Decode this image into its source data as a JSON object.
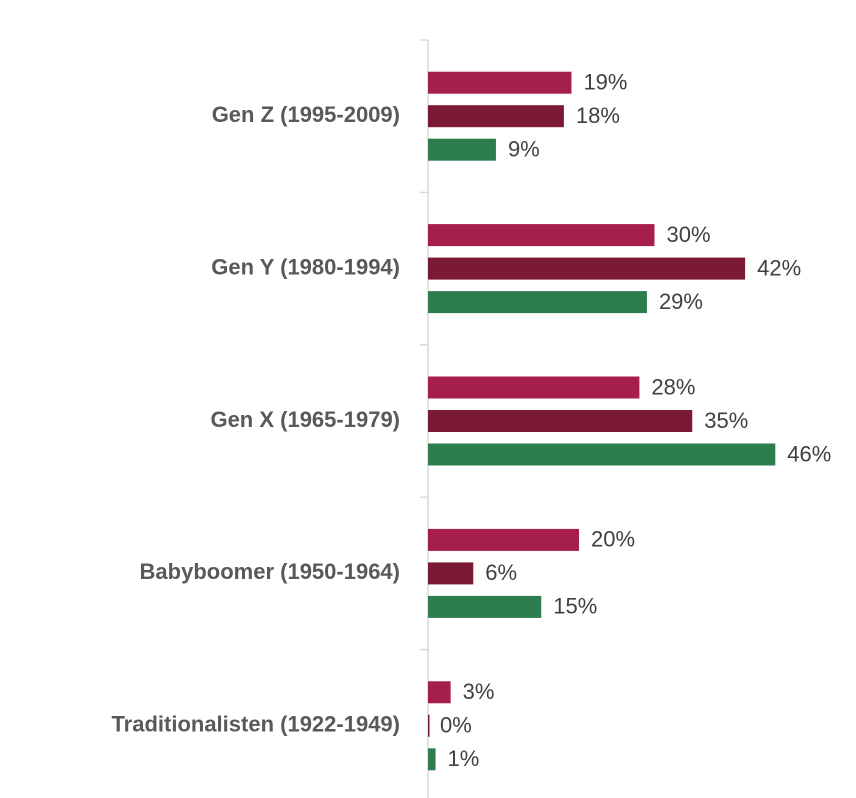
{
  "chart_data": {
    "type": "bar",
    "orientation": "horizontal",
    "categories": [
      "Gen Z (1995-2009)",
      "Gen Y (1980-1994)",
      "Gen X (1965-1979)",
      "Babyboomer (1950-1964)",
      "Traditionalisten (1922-1949)"
    ],
    "series": [
      {
        "color": "#a51f4a",
        "values": [
          19,
          30,
          28,
          20,
          3
        ],
        "value_labels": [
          "19%",
          "30%",
          "28%",
          "20%",
          "3%"
        ]
      },
      {
        "color": "#7b1a35",
        "values": [
          18,
          42,
          35,
          6,
          0
        ],
        "value_labels": [
          "18%",
          "42%",
          "35%",
          "6%",
          "0%"
        ]
      },
      {
        "color": "#2e7d4f",
        "values": [
          9,
          29,
          46,
          15,
          1
        ],
        "value_labels": [
          "9%",
          "29%",
          "46%",
          "15%",
          "1%"
        ]
      }
    ]
  }
}
